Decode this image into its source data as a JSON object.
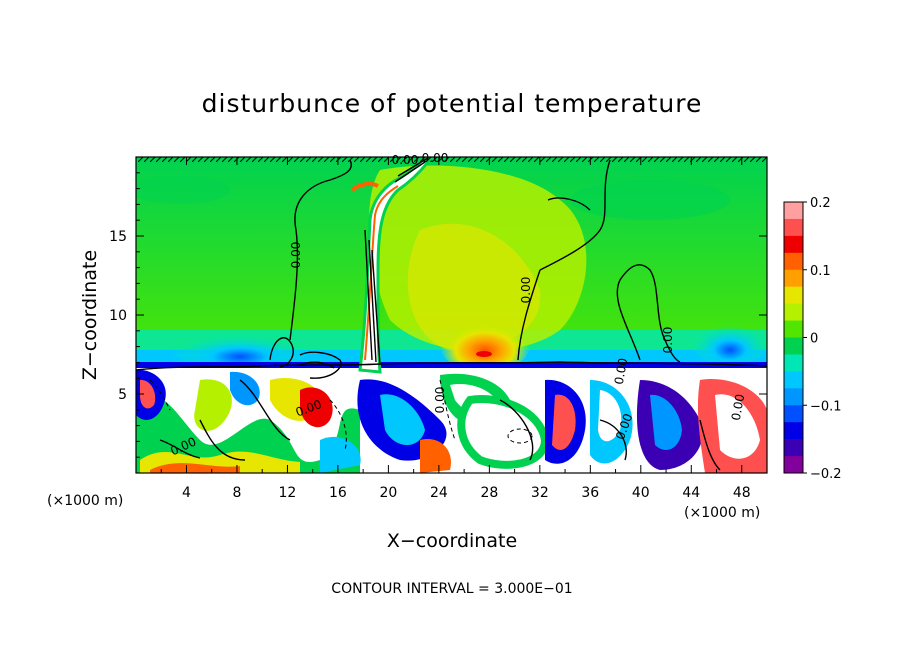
{
  "chart_data": {
    "type": "heatmap",
    "title": "disturbunce of potential temperature",
    "xlabel": "X−coordinate",
    "ylabel": "Z−coordinate",
    "x_unit_left": "(×1000 m)",
    "x_unit_right": "(×1000 m)",
    "footer": "CONTOUR INTERVAL = 3.000E−01",
    "xlim": [
      0,
      50
    ],
    "ylim": [
      0,
      20
    ],
    "x_ticks": [
      4,
      8,
      12,
      16,
      20,
      24,
      28,
      32,
      36,
      40,
      44,
      48
    ],
    "x_tick_labels": [
      "4",
      "8",
      "12",
      "16",
      "20",
      "24",
      "28",
      "32",
      "36",
      "40",
      "44",
      "48"
    ],
    "y_ticks": [
      5,
      10,
      15
    ],
    "y_tick_labels": [
      "5",
      "10",
      "15"
    ],
    "contour_labels": [
      "0.00",
      "0.00",
      "0.00",
      "0.00",
      "0.00",
      "0.00",
      "0.00",
      "0.00",
      "0.00",
      "0.00",
      "0.00"
    ],
    "colorbar": {
      "min": -0.2,
      "max": 0.2,
      "ticks": [
        0.2,
        0.1,
        0,
        -0.1,
        -0.2
      ],
      "tick_labels": [
        "0.2",
        "0.1",
        "0",
        "−0.1",
        "−0.2"
      ],
      "colors": [
        "#ffa0a0",
        "#ff5050",
        "#ee0000",
        "#ff6000",
        "#ffa000",
        "#e6e600",
        "#b4f000",
        "#50e600",
        "#00d250",
        "#00e6b4",
        "#00c8ff",
        "#0096ff",
        "#0050ff",
        "#0000e6",
        "#3c00b4",
        "#82009b"
      ]
    }
  }
}
